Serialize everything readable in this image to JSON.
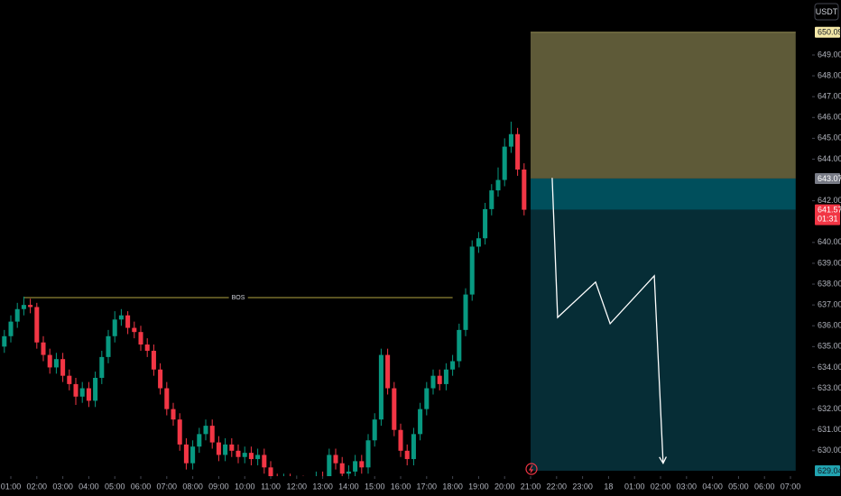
{
  "chart_data": {
    "type": "candlestick",
    "currency": "USDT",
    "x": [
      0.75,
      1,
      1.25,
      1.5,
      1.75,
      2,
      2.25,
      2.5,
      2.75,
      3,
      3.25,
      3.5,
      3.75,
      4,
      4.25,
      4.5,
      4.75,
      5,
      5.25,
      5.5,
      5.75,
      6,
      6.25,
      6.5,
      6.75,
      7,
      7.25,
      7.5,
      7.75,
      8,
      8.25,
      8.5,
      8.75,
      9,
      9.25,
      9.5,
      9.75,
      10,
      10.25,
      10.5,
      10.75,
      11,
      11.25,
      11.5,
      11.75,
      12,
      12.25,
      12.5,
      12.75,
      13,
      13.25,
      13.5,
      13.75,
      14,
      14.25,
      14.5,
      14.75,
      15,
      15.25,
      15.5,
      15.75,
      16,
      16.25,
      16.5,
      16.75,
      17,
      17.25,
      17.5,
      17.75,
      18,
      18.25,
      18.5,
      18.75,
      19,
      19.25,
      19.5,
      19.75,
      20,
      20.25,
      20.5,
      20.75
    ],
    "open": [
      635.0,
      635.5,
      636.2,
      636.8,
      637.0,
      636.9,
      635.2,
      634.6,
      634.0,
      634.4,
      633.6,
      633.2,
      632.6,
      633.0,
      632.4,
      633.5,
      634.5,
      635.5,
      636.3,
      636.5,
      635.9,
      635.7,
      635.1,
      634.8,
      633.9,
      633.0,
      632.0,
      631.5,
      630.3,
      629.4,
      630.2,
      630.8,
      631.2,
      630.4,
      629.8,
      630.3,
      630.0,
      629.7,
      629.9,
      629.6,
      629.8,
      629.2,
      628.6,
      628.4,
      628.6,
      628.3,
      628.5,
      628.2,
      628.4,
      628.7,
      628.5,
      629.8,
      629.4,
      628.9,
      629.0,
      629.5,
      629.2,
      630.5,
      631.5,
      634.6,
      633.0,
      631.0,
      630.0,
      629.6,
      630.8,
      632.0,
      633.0,
      633.6,
      633.2,
      633.9,
      634.3,
      635.8,
      637.5,
      639.8,
      640.2,
      641.6,
      642.5,
      643.0,
      644.6,
      645.2,
      643.5
    ],
    "high": [
      635.8,
      636.5,
      637.1,
      637.4,
      637.3,
      637.1,
      635.5,
      634.9,
      634.7,
      634.7,
      633.9,
      633.5,
      633.3,
      633.3,
      633.8,
      634.8,
      635.8,
      636.7,
      636.8,
      636.7,
      636.2,
      636.0,
      635.4,
      635.1,
      634.2,
      633.3,
      632.3,
      631.8,
      630.6,
      630.5,
      631.1,
      631.5,
      631.5,
      630.7,
      630.6,
      630.6,
      630.3,
      630.2,
      630.2,
      630.1,
      630.1,
      629.5,
      628.9,
      628.9,
      628.9,
      628.8,
      628.8,
      628.7,
      629.0,
      629.0,
      630.1,
      630.1,
      629.7,
      629.3,
      629.8,
      629.8,
      630.8,
      631.8,
      634.9,
      634.9,
      633.3,
      631.3,
      630.3,
      631.1,
      632.3,
      633.3,
      633.9,
      633.9,
      634.2,
      634.6,
      636.1,
      637.8,
      640.1,
      640.5,
      641.9,
      642.8,
      643.6,
      645.0,
      645.8,
      645.5,
      643.8
    ],
    "low": [
      634.7,
      635.2,
      635.9,
      636.5,
      636.6,
      634.9,
      634.3,
      633.7,
      633.7,
      633.3,
      632.9,
      632.2,
      632.3,
      632.1,
      632.1,
      633.2,
      634.2,
      635.2,
      636.0,
      635.6,
      635.4,
      634.8,
      634.5,
      633.6,
      632.7,
      631.7,
      631.2,
      630.0,
      629.1,
      629.1,
      629.9,
      630.5,
      630.1,
      629.5,
      629.5,
      629.7,
      629.4,
      629.4,
      629.3,
      629.3,
      628.9,
      628.3,
      628.1,
      628.1,
      628.0,
      628.0,
      627.9,
      627.9,
      628.1,
      628.2,
      628.2,
      629.1,
      628.6,
      628.6,
      628.7,
      628.9,
      628.9,
      630.2,
      631.2,
      632.7,
      630.7,
      629.7,
      629.3,
      629.3,
      630.5,
      631.7,
      632.7,
      632.9,
      632.9,
      633.6,
      634.0,
      635.5,
      637.2,
      639.5,
      639.9,
      641.3,
      642.2,
      642.7,
      644.3,
      643.2,
      641.3
    ],
    "close": [
      635.5,
      636.2,
      636.8,
      637.0,
      636.9,
      635.2,
      634.6,
      634.0,
      634.4,
      633.6,
      633.2,
      632.6,
      633.0,
      632.4,
      633.5,
      634.5,
      635.5,
      636.3,
      636.5,
      635.9,
      635.7,
      635.1,
      634.8,
      633.9,
      633.0,
      632.0,
      631.5,
      630.3,
      629.4,
      630.2,
      630.8,
      631.2,
      630.4,
      629.8,
      630.3,
      630.0,
      629.7,
      629.9,
      629.6,
      629.8,
      629.2,
      628.6,
      628.4,
      628.6,
      628.3,
      628.5,
      628.2,
      628.4,
      628.7,
      628.5,
      629.8,
      629.4,
      628.9,
      629.0,
      629.5,
      629.2,
      630.5,
      631.5,
      634.6,
      633.0,
      631.0,
      630.0,
      629.6,
      630.8,
      632.0,
      633.0,
      633.6,
      633.2,
      633.9,
      634.3,
      635.8,
      637.5,
      639.8,
      640.2,
      641.6,
      642.5,
      643.0,
      644.6,
      645.2,
      643.5,
      641.57
    ],
    "up_color": "#089981",
    "down_color": "#f23645",
    "xlim": [
      0.583,
      31.833
    ],
    "ylim": [
      628.78,
      651.64
    ],
    "xticks": [
      {
        "value": 1,
        "label": "01:00"
      },
      {
        "value": 2,
        "label": "02:00"
      },
      {
        "value": 3,
        "label": "03:00"
      },
      {
        "value": 4,
        "label": "04:00"
      },
      {
        "value": 5,
        "label": "05:00"
      },
      {
        "value": 6,
        "label": "06:00"
      },
      {
        "value": 7,
        "label": "07:00"
      },
      {
        "value": 8,
        "label": "08:00"
      },
      {
        "value": 9,
        "label": "09:00"
      },
      {
        "value": 10,
        "label": "10:00"
      },
      {
        "value": 11,
        "label": "11:00"
      },
      {
        "value": 12,
        "label": "12:00"
      },
      {
        "value": 13,
        "label": "13:00"
      },
      {
        "value": 14,
        "label": "14:00"
      },
      {
        "value": 15,
        "label": "15:00"
      },
      {
        "value": 16,
        "label": "16:00"
      },
      {
        "value": 17,
        "label": "17:00"
      },
      {
        "value": 18,
        "label": "18:00"
      },
      {
        "value": 19,
        "label": "19:00"
      },
      {
        "value": 20,
        "label": "20:00"
      },
      {
        "value": 21,
        "label": "21:00"
      },
      {
        "value": 22,
        "label": "22:00"
      },
      {
        "value": 23,
        "label": "23:00"
      },
      {
        "value": 24,
        "label": "18"
      },
      {
        "value": 25,
        "label": "01:00"
      },
      {
        "value": 26,
        "label": "02:00"
      },
      {
        "value": 27,
        "label": "03:00"
      },
      {
        "value": 28,
        "label": "04:00"
      },
      {
        "value": 29,
        "label": "05:00"
      },
      {
        "value": 30,
        "label": "06:00"
      },
      {
        "value": 31,
        "label": "07:00"
      }
    ],
    "yticks": [
      {
        "value": 630,
        "label": "630.00"
      },
      {
        "value": 631,
        "label": "631.00"
      },
      {
        "value": 632,
        "label": "632.00"
      },
      {
        "value": 633,
        "label": "633.00"
      },
      {
        "value": 634,
        "label": "634.00"
      },
      {
        "value": 635,
        "label": "635.00"
      },
      {
        "value": 636,
        "label": "636.00"
      },
      {
        "value": 637,
        "label": "637.00"
      },
      {
        "value": 638,
        "label": "638.00"
      },
      {
        "value": 639,
        "label": "639.00"
      },
      {
        "value": 640,
        "label": "640.00"
      },
      {
        "value": 642,
        "label": "642.00"
      },
      {
        "value": 644,
        "label": "644.00"
      },
      {
        "value": 645,
        "label": "645.00"
      },
      {
        "value": 646,
        "label": "646.00"
      },
      {
        "value": 647,
        "label": "647.00"
      },
      {
        "value": 648,
        "label": "648.00"
      },
      {
        "value": 649,
        "label": "649.00"
      }
    ],
    "bos": {
      "label": "BOS",
      "price": 637.35,
      "x": [
        1.5,
        18.0
      ]
    },
    "position": {
      "x": [
        21.0,
        31.2
      ],
      "stop": 650.09,
      "entry": 643.07,
      "target": 629.04
    },
    "last_price": {
      "value": 641.57,
      "countdown": "01:31"
    },
    "projection": {
      "x": [
        21.83,
        22.04,
        23.5,
        24.06,
        25.76,
        26.1
      ],
      "y": [
        643.1,
        636.4,
        638.1,
        636.1,
        638.4,
        629.4
      ]
    }
  }
}
